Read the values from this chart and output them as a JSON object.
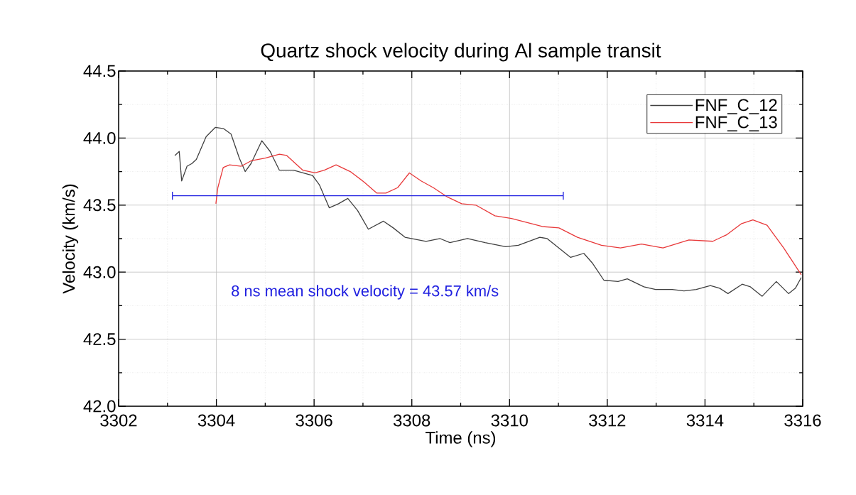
{
  "chart_data": {
    "type": "line",
    "title": "Quartz shock velocity during Al sample transit",
    "xlabel": "Time (ns)",
    "ylabel": "Velocity (km/s)",
    "xlim": [
      3302,
      3316
    ],
    "xticks": [
      3302,
      3304,
      3306,
      3308,
      3310,
      3312,
      3314,
      3316
    ],
    "ylim": [
      42.0,
      44.5
    ],
    "yticks": [
      {
        "value": 42.0,
        "label": "42.0"
      },
      {
        "value": 42.5,
        "label": "42.5"
      },
      {
        "value": 43.0,
        "label": "43.0"
      },
      {
        "value": 43.5,
        "label": "43.5"
      },
      {
        "value": 44.0,
        "label": "44.0"
      },
      {
        "value": 44.5,
        "label": "44.5"
      }
    ],
    "grid": true,
    "legend": "top right",
    "series": [
      {
        "name": "FNF_C_12",
        "color": "#404040",
        "x": [
          3303.15,
          3303.24,
          3303.29,
          3303.4,
          3303.5,
          3303.59,
          3303.79,
          3303.98,
          3304.15,
          3304.3,
          3304.47,
          3304.59,
          3304.71,
          3304.93,
          3305.1,
          3305.29,
          3305.58,
          3305.77,
          3305.97,
          3306.11,
          3306.31,
          3306.5,
          3306.69,
          3306.89,
          3307.11,
          3307.42,
          3307.62,
          3307.86,
          3308.29,
          3308.58,
          3308.78,
          3309.14,
          3309.5,
          3309.92,
          3310.18,
          3310.62,
          3310.77,
          3311.01,
          3311.25,
          3311.52,
          3311.69,
          3311.93,
          3312.22,
          3312.41,
          3312.75,
          3312.99,
          3313.33,
          3313.57,
          3313.82,
          3314.11,
          3314.3,
          3314.47,
          3314.76,
          3314.93,
          3315.17,
          3315.46,
          3315.71,
          3315.85,
          3315.97
        ],
        "values": [
          43.87,
          43.9,
          43.68,
          43.79,
          43.81,
          43.84,
          44.01,
          44.08,
          44.07,
          44.03,
          43.85,
          43.75,
          43.81,
          43.98,
          43.9,
          43.76,
          43.76,
          43.74,
          43.72,
          43.65,
          43.48,
          43.51,
          43.55,
          43.46,
          43.32,
          43.38,
          43.33,
          43.26,
          43.23,
          43.25,
          43.22,
          43.25,
          43.22,
          43.19,
          43.2,
          43.26,
          43.25,
          43.18,
          43.11,
          43.14,
          43.07,
          42.94,
          42.93,
          42.95,
          42.89,
          42.87,
          42.87,
          42.86,
          42.87,
          42.9,
          42.88,
          42.84,
          42.91,
          42.89,
          42.82,
          42.93,
          42.84,
          42.88,
          42.96
        ]
      },
      {
        "name": "FNF_C_13",
        "color": "#e8393a",
        "x": [
          3303.99,
          3304.03,
          3304.14,
          3304.27,
          3304.51,
          3304.71,
          3305.0,
          3305.29,
          3305.44,
          3305.77,
          3306.02,
          3306.21,
          3306.45,
          3306.74,
          3307.03,
          3307.28,
          3307.47,
          3307.71,
          3307.95,
          3308.19,
          3308.44,
          3308.73,
          3309.02,
          3309.31,
          3309.7,
          3310.04,
          3310.67,
          3311.01,
          3311.39,
          3311.88,
          3312.27,
          3312.7,
          3313.14,
          3313.67,
          3314.16,
          3314.45,
          3314.74,
          3314.98,
          3315.27,
          3315.61,
          3315.97
        ],
        "values": [
          43.51,
          43.63,
          43.78,
          43.8,
          43.79,
          43.83,
          43.85,
          43.88,
          43.87,
          43.76,
          43.74,
          43.76,
          43.8,
          43.75,
          43.67,
          43.59,
          43.59,
          43.63,
          43.74,
          43.68,
          43.63,
          43.56,
          43.51,
          43.5,
          43.42,
          43.4,
          43.34,
          43.33,
          43.26,
          43.2,
          43.18,
          43.21,
          43.18,
          43.24,
          43.23,
          43.28,
          43.36,
          43.39,
          43.35,
          43.18,
          42.98
        ]
      },
      {
        "color": "#2020e0",
        "x": [
          3303.1,
          3311.1
        ],
        "values": [
          43.57,
          43.57
        ],
        "errors": [
          0.03,
          0.03
        ]
      }
    ],
    "annotations": [
      "8 ns mean shock velocity = 43.57 km/s"
    ]
  }
}
